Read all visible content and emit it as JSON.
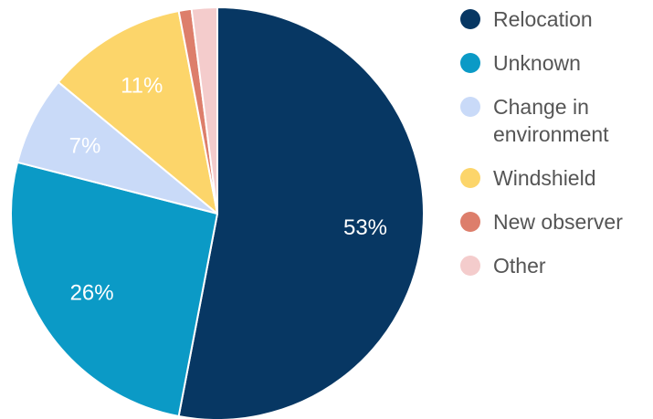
{
  "chart_data": {
    "type": "pie",
    "start_angle_deg": 0,
    "direction": "clockwise",
    "slices": [
      {
        "label": "Relocation",
        "value": 53,
        "display": "53%",
        "color": "#073763",
        "show_label": true
      },
      {
        "label": "Unknown",
        "value": 26,
        "display": "26%",
        "color": "#0b9ac6",
        "show_label": true
      },
      {
        "label": "Change in environment",
        "label_lines": [
          "Change in",
          "environment"
        ],
        "value": 7,
        "display": "7%",
        "color": "#c9daf8",
        "show_label": true
      },
      {
        "label": "Windshield",
        "value": 11,
        "display": "11%",
        "color": "#fcd56a",
        "show_label": true
      },
      {
        "label": "New observer",
        "value": 1,
        "display": "",
        "color": "#dd7e6b",
        "show_label": false
      },
      {
        "label": "Other",
        "value": 2,
        "display": "",
        "color": "#f4cccc",
        "show_label": false
      }
    ],
    "legend": {
      "position": "right",
      "marker": "circle"
    }
  }
}
